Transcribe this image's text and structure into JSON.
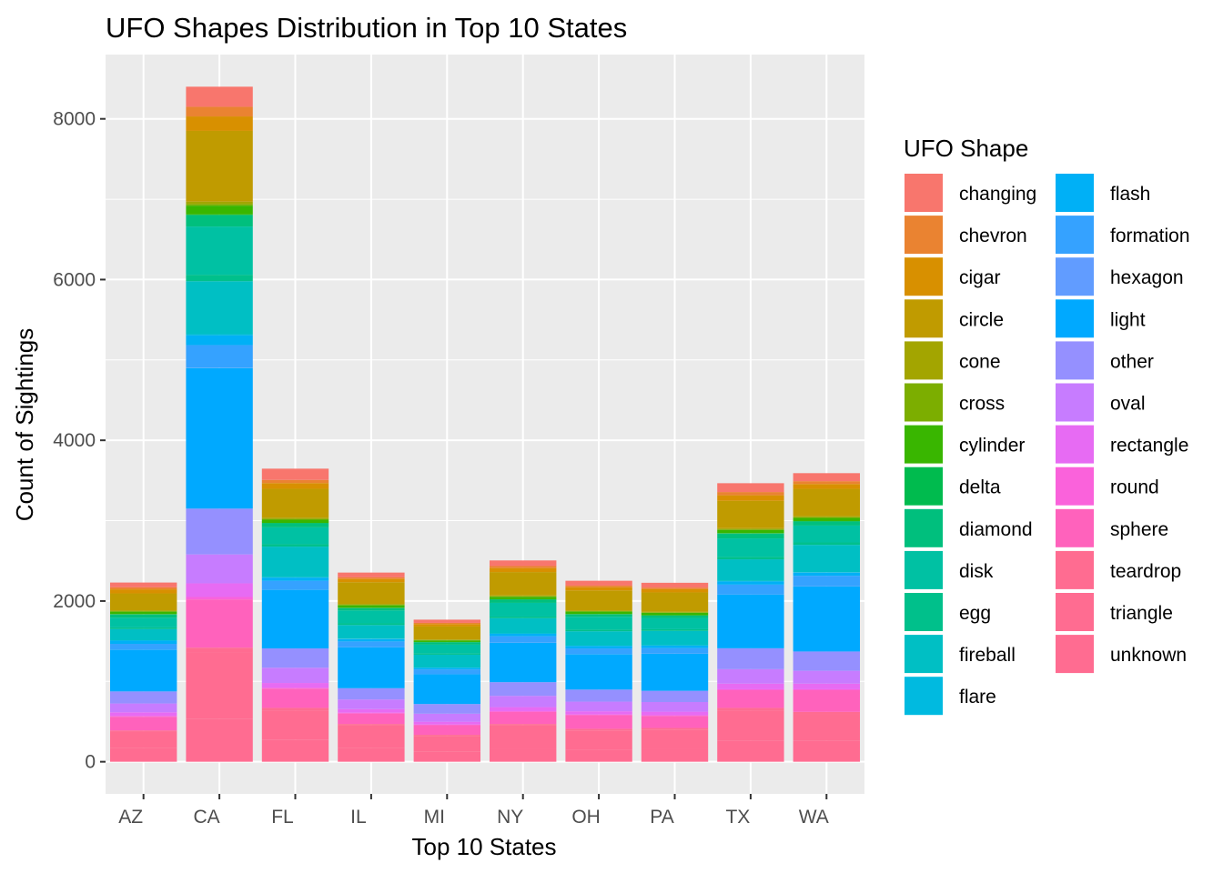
{
  "chart_data": {
    "type": "bar",
    "stacked": true,
    "title": "UFO Shapes Distribution in Top 10 States",
    "xlabel": "Top 10 States",
    "ylabel": "Count of Sightings",
    "ylim": [
      -400,
      8800
    ],
    "yticks": [
      0,
      2000,
      4000,
      6000,
      8000
    ],
    "ytick_labels": [
      "0",
      "2000",
      "4000",
      "6000",
      "8000"
    ],
    "grid": true,
    "legend_title": "UFO Shape",
    "legend_position": "right",
    "categories": [
      "AZ",
      "CA",
      "FL",
      "IL",
      "MI",
      "NY",
      "OH",
      "PA",
      "TX",
      "WA"
    ],
    "series": [
      {
        "name": "changing",
        "color": "#F8766D",
        "values": [
          60,
          250,
          140,
          60,
          40,
          70,
          60,
          60,
          110,
          100
        ]
      },
      {
        "name": "chevron",
        "color": "#EA8331",
        "values": [
          25,
          120,
          40,
          20,
          15,
          25,
          20,
          20,
          40,
          35
        ]
      },
      {
        "name": "cigar",
        "color": "#D89000",
        "values": [
          50,
          180,
          70,
          40,
          30,
          50,
          40,
          40,
          70,
          60
        ]
      },
      {
        "name": "circle",
        "color": "#C09B00",
        "values": [
          210,
          880,
          360,
          270,
          160,
          290,
          250,
          240,
          340,
          340
        ]
      },
      {
        "name": "cone",
        "color": "#A3A500",
        "values": [
          10,
          30,
          15,
          10,
          8,
          10,
          8,
          8,
          12,
          12
        ]
      },
      {
        "name": "cross",
        "color": "#7CAE00",
        "values": [
          8,
          20,
          10,
          8,
          5,
          8,
          6,
          6,
          10,
          10
        ]
      },
      {
        "name": "cylinder",
        "color": "#39B600",
        "values": [
          30,
          110,
          40,
          30,
          20,
          30,
          30,
          30,
          40,
          40
        ]
      },
      {
        "name": "delta",
        "color": "#00BB4E",
        "values": [
          5,
          10,
          5,
          4,
          3,
          5,
          4,
          4,
          5,
          5
        ]
      },
      {
        "name": "diamond",
        "color": "#00BF7D",
        "values": [
          40,
          140,
          50,
          30,
          30,
          40,
          30,
          30,
          60,
          50
        ]
      },
      {
        "name": "disk",
        "color": "#00C1A3",
        "values": [
          120,
          600,
          210,
          160,
          110,
          170,
          160,
          140,
          230,
          210
        ]
      },
      {
        "name": "egg",
        "color": "#00C08B",
        "values": [
          20,
          80,
          30,
          20,
          15,
          20,
          20,
          20,
          30,
          30
        ]
      },
      {
        "name": "fireball",
        "color": "#00BFC4",
        "values": [
          140,
          660,
          380,
          170,
          160,
          190,
          180,
          180,
          270,
          340
        ]
      },
      {
        "name": "flare",
        "color": "#00BAE0",
        "values": [
          5,
          15,
          5,
          5,
          3,
          5,
          4,
          4,
          5,
          5
        ]
      },
      {
        "name": "flash",
        "color": "#00B0F6",
        "values": [
          40,
          120,
          40,
          30,
          20,
          30,
          30,
          30,
          40,
          40
        ]
      },
      {
        "name": "formation",
        "color": "#35A2FF",
        "values": [
          70,
          280,
          110,
          70,
          60,
          80,
          70,
          70,
          120,
          130
        ]
      },
      {
        "name": "hexagon",
        "color": "#619CFF",
        "values": [
          2,
          5,
          2,
          2,
          1,
          2,
          2,
          2,
          2,
          2
        ]
      },
      {
        "name": "light",
        "color": "#00A9FF",
        "values": [
          520,
          1750,
          730,
          510,
          370,
          490,
          440,
          460,
          670,
          810
        ]
      },
      {
        "name": "other",
        "color": "#9590FF",
        "values": [
          150,
          570,
          240,
          140,
          120,
          170,
          150,
          140,
          260,
          240
        ]
      },
      {
        "name": "oval",
        "color": "#C77CFF",
        "values": [
          110,
          360,
          190,
          120,
          100,
          140,
          120,
          120,
          180,
          160
        ]
      },
      {
        "name": "rectangle",
        "color": "#E76BF3",
        "values": [
          45,
          170,
          60,
          45,
          35,
          50,
          40,
          45,
          70,
          70
        ]
      },
      {
        "name": "round",
        "color": "#FA62DB",
        "values": [
          10,
          30,
          10,
          10,
          8,
          10,
          8,
          8,
          12,
          12
        ]
      },
      {
        "name": "sphere",
        "color": "#FF62BC",
        "values": [
          170,
          600,
          240,
          130,
          120,
          150,
          170,
          150,
          220,
          270
        ]
      },
      {
        "name": "teardrop",
        "color": "#FF6C91",
        "values": [
          20,
          60,
          30,
          20,
          15,
          20,
          20,
          20,
          30,
          30
        ]
      },
      {
        "name": "triangle",
        "color": "#FF6C91",
        "values": [
          200,
          830,
          370,
          280,
          190,
          290,
          240,
          240,
          380,
          330
        ]
      },
      {
        "name": "unknown",
        "color": "#FF6C91",
        "values": [
          170,
          530,
          270,
          170,
          130,
          160,
          150,
          160,
          260,
          260
        ]
      }
    ]
  }
}
